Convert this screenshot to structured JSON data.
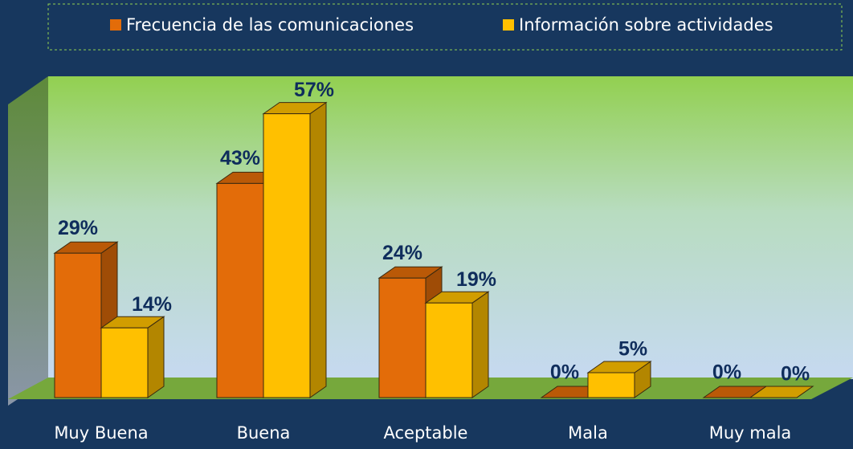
{
  "chart_data": {
    "type": "bar3d",
    "categories": [
      "Muy Buena",
      "Buena",
      "Aceptable",
      "Mala",
      "Muy mala"
    ],
    "series": [
      {
        "name": "Frecuencia de las comunicaciones",
        "color": "#e36c09",
        "values": [
          29,
          43,
          24,
          0,
          0
        ],
        "value_labels": [
          "29%",
          "43%",
          "24%",
          "0%",
          "0%"
        ]
      },
      {
        "name": "Información sobre actividades",
        "color": "#ffc000",
        "values": [
          14,
          57,
          19,
          5,
          0
        ],
        "value_labels": [
          "14%",
          "57%",
          "19%",
          "5%",
          "0%"
        ]
      }
    ],
    "legend": "top"
  }
}
